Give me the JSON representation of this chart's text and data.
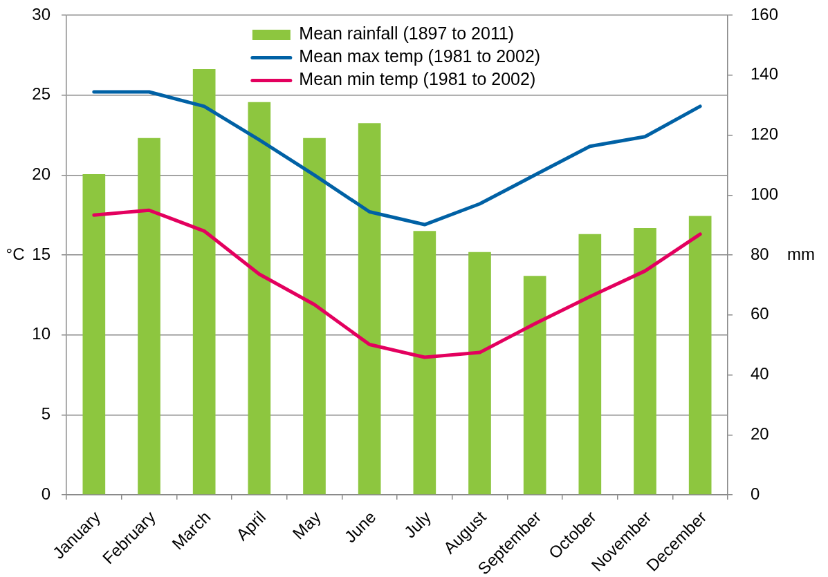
{
  "chart_data": {
    "type": "bar",
    "categories": [
      "January",
      "February",
      "March",
      "April",
      "May",
      "June",
      "July",
      "August",
      "September",
      "October",
      "November",
      "December"
    ],
    "ylabel": "°C",
    "y2label": "mm",
    "ylim": [
      0,
      30
    ],
    "yticks": [
      0,
      5,
      10,
      15,
      20,
      25,
      30
    ],
    "y2lim": [
      0,
      160
    ],
    "y2ticks": [
      0,
      20,
      40,
      60,
      80,
      100,
      120,
      140,
      160
    ],
    "grid": "y",
    "legend": "top",
    "series": [
      {
        "name": "Mean rainfall (1897 to 2011)",
        "axis": "y2",
        "color": "#8dc63f",
        "values": [
          107,
          119,
          142,
          131,
          119,
          124,
          88,
          81,
          73,
          87,
          89,
          93
        ]
      },
      {
        "name": "Mean max temp (1981 to 2002)",
        "type": "line",
        "color": "#0061a5",
        "values": [
          25.2,
          25.2,
          24.3,
          22.2,
          20.0,
          17.7,
          16.9,
          18.2,
          20.0,
          21.8,
          22.4,
          24.3
        ]
      },
      {
        "name": "Mean min temp (1981 to 2002)",
        "type": "line",
        "color": "#e3005e",
        "values": [
          17.5,
          17.8,
          16.5,
          13.8,
          11.9,
          9.4,
          8.6,
          8.9,
          10.7,
          12.4,
          14.0,
          16.3
        ]
      }
    ]
  }
}
